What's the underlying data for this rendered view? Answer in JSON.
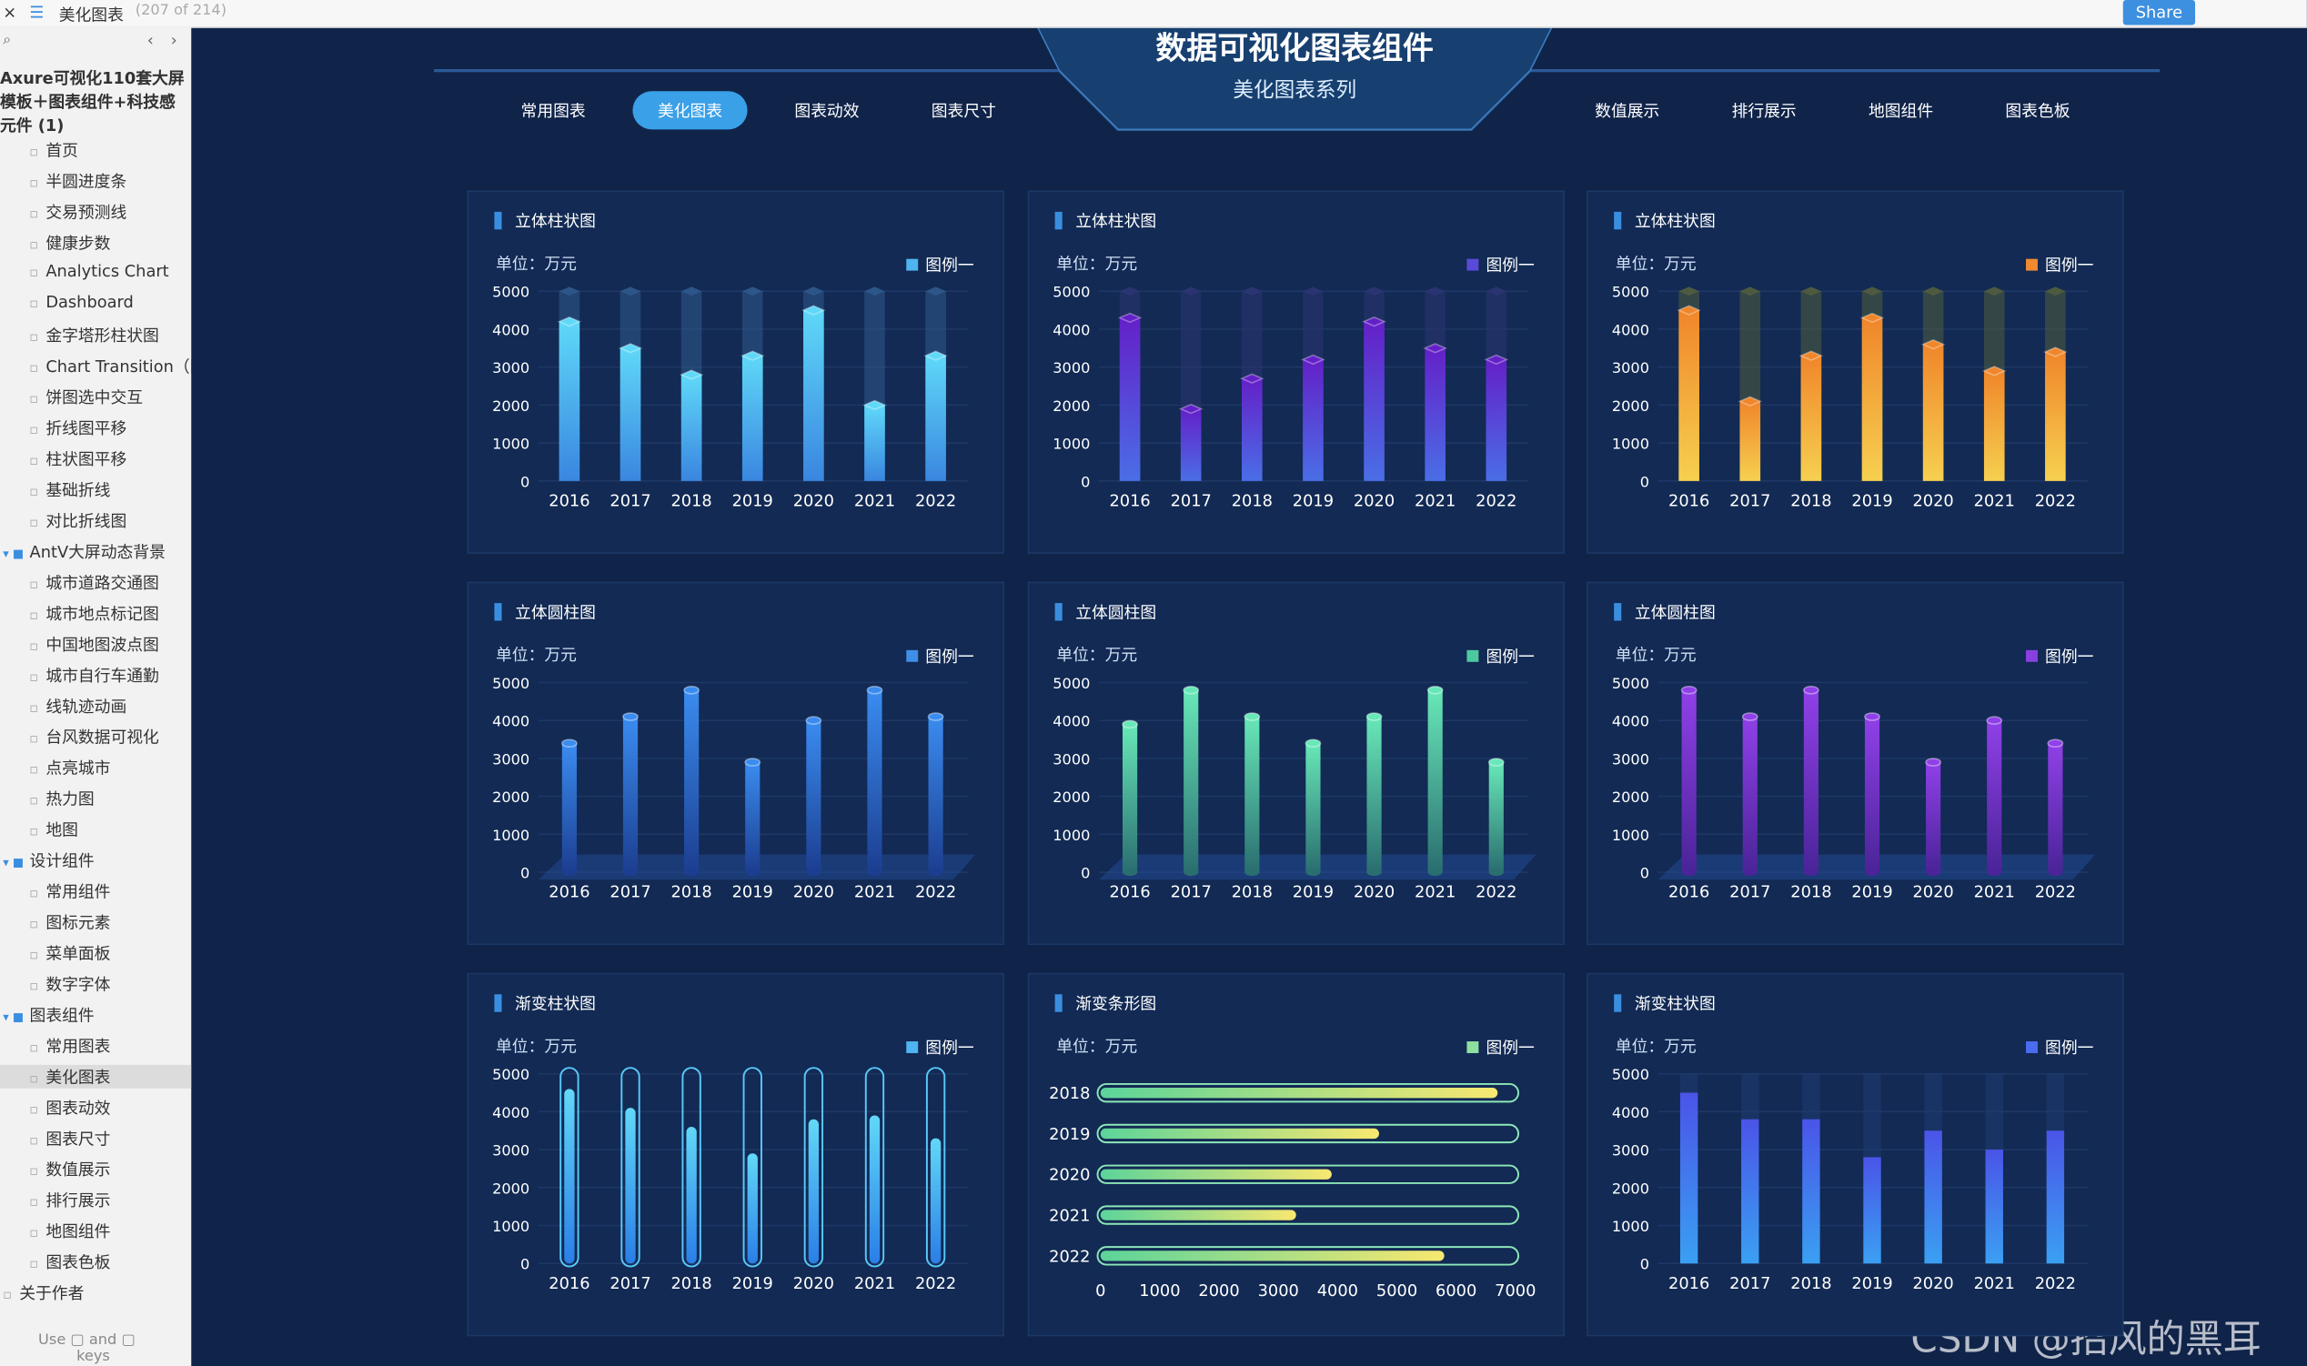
{
  "topbar": {
    "close": "×",
    "menu": "☰",
    "page_title": "美化图表",
    "page_count": "(207 of 214)",
    "share": "Share"
  },
  "sidebar": {
    "search": "⌕",
    "nav": [
      "‹",
      "›"
    ],
    "project": "Axure可视化110套大屏模板＋图表组件+科技感元件 (1)",
    "pages": [
      "首页",
      "半圆进度条",
      "交易预测线",
      "健康步数",
      "Analytics Chart",
      "Dashboard",
      "金字塔形柱状图",
      "Chart Transition（图",
      "饼图选中交互",
      "折线图平移",
      "柱状图平移",
      "基础折线",
      "对比折线图"
    ],
    "folders": [
      {
        "label": "AntV大屏动态背景",
        "items": [
          "城市道路交通图",
          "城市地点标记图",
          "中国地图波点图",
          "城市自行车通勤",
          "线轨迹动画",
          "台风数据可视化",
          "点亮城市",
          "热力图",
          "地图"
        ]
      },
      {
        "label": "设计组件",
        "items": [
          "常用组件",
          "图标元素",
          "菜单面板",
          "数字字体"
        ]
      },
      {
        "label": "图表组件",
        "items": [
          "常用图表",
          "美化图表",
          "图表动效",
          "图表尺寸",
          "数值展示",
          "排行展示",
          "地图组件",
          "图表色板"
        ]
      }
    ],
    "last_page": "关于作者",
    "selected": "美化图表",
    "footer": [
      "Use",
      "and",
      "keys"
    ]
  },
  "header": {
    "title": "数据可视化图表组件",
    "subtitle": "美化图表系列",
    "tabs_left": [
      "常用图表",
      "美化图表",
      "图表动效",
      "图表尺寸"
    ],
    "tabs_right": [
      "数值展示",
      "排行展示",
      "地图组件",
      "图表色板"
    ],
    "active_tab": "美化图表"
  },
  "watermark": "CSDN @招风的黑耳",
  "chart_data": [
    {
      "type": "bar3d",
      "title": "立体柱状图",
      "unit_label": "单位：万元",
      "categories": [
        "2016",
        "2017",
        "2018",
        "2019",
        "2020",
        "2021",
        "2022"
      ],
      "series": [
        {
          "name": "图例一",
          "color": "#4fb4f0",
          "values": [
            4200,
            3500,
            2800,
            3300,
            4500,
            2000,
            3300
          ]
        }
      ],
      "gradient": [
        "#5fd8f8",
        "#3a86e0"
      ],
      "track_color": "#2d5688",
      "ylim": [
        0,
        5000
      ],
      "yticks": [
        0,
        1000,
        2000,
        3000,
        4000,
        5000
      ]
    },
    {
      "type": "bar3d",
      "title": "立体柱状图",
      "unit_label": "单位：万元",
      "categories": [
        "2016",
        "2017",
        "2018",
        "2019",
        "2020",
        "2021",
        "2022"
      ],
      "series": [
        {
          "name": "图例一",
          "color": "#5a4ad8",
          "values": [
            4300,
            1900,
            2700,
            3200,
            4200,
            3500,
            3200
          ]
        }
      ],
      "gradient": [
        "#6420c8",
        "#4a6ee6"
      ],
      "track_color": "#2a3470",
      "ylim": [
        0,
        5000
      ],
      "yticks": [
        0,
        1000,
        2000,
        3000,
        4000,
        5000
      ]
    },
    {
      "type": "bar3d",
      "title": "立体柱状图",
      "unit_label": "单位：万元",
      "categories": [
        "2016",
        "2017",
        "2018",
        "2019",
        "2020",
        "2021",
        "2022"
      ],
      "series": [
        {
          "name": "图例一",
          "color": "#f08a30",
          "values": [
            4500,
            2100,
            3300,
            4300,
            3600,
            2900,
            3400
          ]
        }
      ],
      "gradient": [
        "#f0862a",
        "#f6d050"
      ],
      "track_color": "#4d5a40",
      "ylim": [
        0,
        5000
      ],
      "yticks": [
        0,
        1000,
        2000,
        3000,
        4000,
        5000
      ]
    },
    {
      "type": "cylinder",
      "title": "立体圆柱图",
      "unit_label": "单位：万元",
      "categories": [
        "2016",
        "2017",
        "2018",
        "2019",
        "2020",
        "2021",
        "2022"
      ],
      "series": [
        {
          "name": "图例一",
          "color": "#3f8ee8",
          "values": [
            3400,
            4100,
            4800,
            2900,
            4000,
            4800,
            4100
          ]
        }
      ],
      "gradient": [
        "#3a8cf0",
        "#1c3e90"
      ],
      "ylim": [
        0,
        5000
      ],
      "yticks": [
        0,
        1000,
        2000,
        3000,
        4000,
        5000
      ]
    },
    {
      "type": "cylinder",
      "title": "立体圆柱图",
      "unit_label": "单位：万元",
      "categories": [
        "2016",
        "2017",
        "2018",
        "2019",
        "2020",
        "2021",
        "2022"
      ],
      "series": [
        {
          "name": "图例一",
          "color": "#4ec8a0",
          "values": [
            3900,
            4800,
            4100,
            3400,
            4100,
            4800,
            2900
          ]
        }
      ],
      "gradient": [
        "#68e8b8",
        "#2a6e70"
      ],
      "ylim": [
        0,
        5000
      ],
      "yticks": [
        0,
        1000,
        2000,
        3000,
        4000,
        5000
      ]
    },
    {
      "type": "cylinder",
      "title": "立体圆柱图",
      "unit_label": "单位：万元",
      "categories": [
        "2016",
        "2017",
        "2018",
        "2019",
        "2020",
        "2021",
        "2022"
      ],
      "series": [
        {
          "name": "图例一",
          "color": "#8a40e0",
          "values": [
            4800,
            4100,
            4800,
            4100,
            2900,
            4000,
            3400
          ]
        }
      ],
      "gradient": [
        "#9040e8",
        "#4a2498"
      ],
      "ylim": [
        0,
        5000
      ],
      "yticks": [
        0,
        1000,
        2000,
        3000,
        4000,
        5000
      ]
    },
    {
      "type": "capsule",
      "title": "渐变柱状图",
      "unit_label": "单位：万元",
      "categories": [
        "2016",
        "2017",
        "2018",
        "2019",
        "2020",
        "2021",
        "2022"
      ],
      "series": [
        {
          "name": "图例一",
          "color": "#4fb4f0",
          "values": [
            4600,
            4100,
            3600,
            2900,
            3800,
            3900,
            3300
          ]
        }
      ],
      "gradient": [
        "#62d8f8",
        "#2a7ee6"
      ],
      "track_color": "#5ac8fa",
      "ylim": [
        0,
        5000
      ],
      "yticks": [
        0,
        1000,
        2000,
        3000,
        4000,
        5000
      ]
    },
    {
      "type": "hbar",
      "title": "渐变条形图",
      "unit_label": "单位：万元",
      "categories": [
        "2018",
        "2019",
        "2020",
        "2021",
        "2022"
      ],
      "series": [
        {
          "name": "图例一",
          "color": "#8ee0a0",
          "values": [
            6700,
            4700,
            3900,
            3300,
            5800
          ]
        }
      ],
      "gradient": [
        "#5cd49a",
        "#f8e870"
      ],
      "track_color": "#8ee8b8",
      "xlim": [
        0,
        7000
      ],
      "xticks": [
        0,
        1000,
        2000,
        3000,
        4000,
        5000,
        6000,
        7000
      ]
    },
    {
      "type": "bar",
      "title": "渐变柱状图",
      "unit_label": "单位：万元",
      "categories": [
        "2016",
        "2017",
        "2018",
        "2019",
        "2020",
        "2021",
        "2022"
      ],
      "series": [
        {
          "name": "图例一",
          "color": "#4a6cf0",
          "values": [
            4500,
            3800,
            3800,
            2800,
            3500,
            3000,
            3500
          ]
        }
      ],
      "gradient": [
        "#4a54e8",
        "#3aa0f2"
      ],
      "track_color": "#1e3a72",
      "ylim": [
        0,
        5000
      ],
      "yticks": [
        0,
        1000,
        2000,
        3000,
        4000,
        5000
      ]
    }
  ]
}
